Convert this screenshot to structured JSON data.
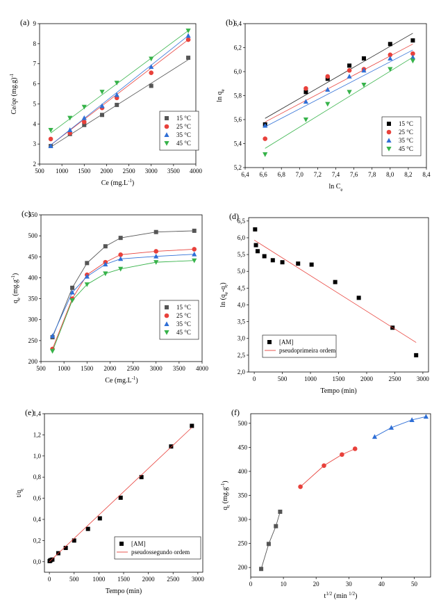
{
  "chart_data": [
    {
      "id": "a",
      "panel_label": "(a)",
      "type": "scatter",
      "xlabel": "Ce (mg.L",
      "xlabel_sup": "-1",
      "xlabel_tail": ")",
      "ylabel": "Ce/qe (mg.g",
      "ylabel_sup": "-1",
      "ylabel_tail": ")",
      "xlim": [
        500,
        4000
      ],
      "ylim": [
        2,
        9
      ],
      "xticks": [
        500,
        1000,
        1500,
        2000,
        2500,
        3000,
        3500,
        4000
      ],
      "xtick_labels": [
        "500",
        "1000",
        "1500",
        "2000",
        "2500",
        "3000",
        "3500",
        "4000"
      ],
      "yticks": [
        2,
        3,
        4,
        5,
        6,
        7,
        8,
        9
      ],
      "ytick_labels": [
        "2",
        "3",
        "4",
        "5",
        "6",
        "7",
        "8",
        "9"
      ],
      "legend_placement": "bottom-right",
      "series": [
        {
          "name": "15 °C",
          "marker": "square",
          "color": "#555555",
          "x": [
            750,
            1180,
            1500,
            1900,
            2230,
            3000,
            3830
          ],
          "y": [
            2.9,
            3.5,
            3.95,
            4.45,
            4.95,
            5.9,
            7.3
          ],
          "fit": [
            [
              750,
              2.85
            ],
            [
              3830,
              7.2
            ]
          ]
        },
        {
          "name": "25 °C",
          "marker": "circle",
          "color": "#e8413b",
          "x": [
            750,
            1180,
            1500,
            1900,
            2230,
            3000,
            3830
          ],
          "y": [
            3.25,
            3.55,
            4.1,
            4.8,
            5.3,
            6.55,
            8.2
          ],
          "fit": [
            [
              750,
              2.95
            ],
            [
              3830,
              8.2
            ]
          ]
        },
        {
          "name": "35 °C",
          "marker": "triangle-up",
          "color": "#2f6fd6",
          "x": [
            750,
            1180,
            1500,
            1900,
            2230,
            3000,
            3830
          ],
          "y": [
            2.9,
            3.7,
            4.3,
            4.9,
            5.45,
            6.85,
            8.4
          ],
          "fit": [
            [
              750,
              2.95
            ],
            [
              3830,
              8.4
            ]
          ]
        },
        {
          "name": "45 °C",
          "marker": "triangle-down",
          "color": "#37b34a",
          "x": [
            750,
            1180,
            1500,
            1900,
            2230,
            3000,
            3830
          ],
          "y": [
            3.7,
            4.3,
            4.85,
            5.6,
            6.05,
            7.25,
            8.65
          ],
          "fit": [
            [
              750,
              3.55
            ],
            [
              3830,
              8.65
            ]
          ]
        }
      ]
    },
    {
      "id": "b",
      "panel_label": "(b)",
      "type": "scatter",
      "xlabel": "ln C",
      "xlabel_sub": "e",
      "ylabel": "ln q",
      "ylabel_sub": "e",
      "xlim": [
        6.4,
        8.4
      ],
      "ylim": [
        5.2,
        6.4
      ],
      "xticks": [
        6.4,
        6.6,
        6.8,
        7.0,
        7.2,
        7.4,
        7.6,
        7.8,
        8.0,
        8.2,
        8.4
      ],
      "xtick_labels": [
        "6,4",
        "6,6",
        "6,8",
        "7,0",
        "7,2",
        "7,4",
        "7,6",
        "7,8",
        "8,0",
        "8,2",
        "8,4"
      ],
      "yticks": [
        5.2,
        5.4,
        5.6,
        5.8,
        6.0,
        6.2,
        6.4
      ],
      "ytick_labels": [
        "5,2",
        "5,4",
        "5,6",
        "5,8",
        "6,0",
        "6,2",
        "6,4"
      ],
      "legend_placement": "bottom-right",
      "series": [
        {
          "name": "15 °C",
          "marker": "square",
          "color": "#000000",
          "x": [
            6.62,
            7.07,
            7.31,
            7.55,
            7.71,
            8.0,
            8.25
          ],
          "y": [
            5.56,
            5.83,
            5.94,
            6.05,
            6.11,
            6.23,
            6.26
          ],
          "fit": [
            [
              6.62,
              5.61
            ],
            [
              8.25,
              6.32
            ]
          ]
        },
        {
          "name": "25 °C",
          "marker": "circle",
          "color": "#e8413b",
          "x": [
            6.62,
            7.07,
            7.31,
            7.55,
            7.71,
            8.0,
            8.25
          ],
          "y": [
            5.44,
            5.86,
            5.96,
            6.01,
            6.02,
            6.14,
            6.15
          ],
          "fit": [
            [
              6.62,
              5.58
            ],
            [
              8.25,
              6.23
            ]
          ]
        },
        {
          "name": "35 °C",
          "marker": "triangle-up",
          "color": "#2f6fd6",
          "x": [
            6.62,
            7.07,
            7.31,
            7.55,
            7.71,
            8.0,
            8.25
          ],
          "y": [
            5.55,
            5.75,
            5.85,
            5.96,
            6.01,
            6.11,
            6.12
          ],
          "fit": [
            [
              6.62,
              5.54
            ],
            [
              8.25,
              6.18
            ]
          ]
        },
        {
          "name": "45 °C",
          "marker": "triangle-down",
          "color": "#37b34a",
          "x": [
            6.62,
            7.07,
            7.31,
            7.55,
            7.71,
            8.0,
            8.25
          ],
          "y": [
            5.31,
            5.6,
            5.73,
            5.83,
            5.89,
            6.02,
            6.09
          ],
          "fit": [
            [
              6.62,
              5.36
            ],
            [
              8.25,
              6.12
            ]
          ]
        }
      ]
    },
    {
      "id": "c",
      "panel_label": "(c)",
      "type": "line",
      "xlabel": "Ce (mg.L",
      "xlabel_sup": "-1",
      "xlabel_tail": ")",
      "ylabel": "q",
      "ylabel_sub": "e",
      "ylabel_tail": " (mg.g",
      "ylabel_sup": "-1",
      "ylabel_tail2": ")",
      "xlim": [
        500,
        4000
      ],
      "ylim": [
        200,
        550
      ],
      "xticks": [
        500,
        1000,
        1500,
        2000,
        2500,
        3000,
        3500,
        4000
      ],
      "xtick_labels": [
        "500",
        "1000",
        "1500",
        "2000",
        "2500",
        "3000",
        "3500",
        "4000"
      ],
      "yticks": [
        200,
        250,
        300,
        350,
        400,
        450,
        500,
        550
      ],
      "ytick_labels": [
        "200",
        "250",
        "300",
        "350",
        "400",
        "450",
        "500",
        "550"
      ],
      "legend_placement": "bottom-right",
      "series": [
        {
          "name": "15 °C",
          "marker": "square",
          "color": "#555555",
          "x": [
            750,
            1180,
            1500,
            1900,
            2230,
            3000,
            3830
          ],
          "y": [
            258,
            376,
            435,
            475,
            495,
            509,
            512
          ]
        },
        {
          "name": "25 °C",
          "marker": "circle",
          "color": "#e8413b",
          "x": [
            750,
            1180,
            1500,
            1900,
            2230,
            3000,
            3830
          ],
          "y": [
            230,
            350,
            407,
            437,
            455,
            463,
            468
          ]
        },
        {
          "name": "35 °C",
          "marker": "triangle-up",
          "color": "#2f6fd6",
          "x": [
            750,
            1180,
            1500,
            1900,
            2230,
            3000,
            3830
          ],
          "y": [
            261,
            365,
            403,
            432,
            445,
            451,
            456
          ]
        },
        {
          "name": "45 °C",
          "marker": "triangle-down",
          "color": "#37b34a",
          "x": [
            750,
            1180,
            1500,
            1900,
            2230,
            3000,
            3830
          ],
          "y": [
            225,
            346,
            384,
            410,
            421,
            437,
            441
          ]
        }
      ]
    },
    {
      "id": "d",
      "panel_label": "(d)",
      "type": "scatter",
      "xlabel": "Tempo (min)",
      "ylabel": "ln (q",
      "ylabel_sub": "e",
      "ylabel_tail": "-q",
      "ylabel_sub2": "t",
      "ylabel_tail2": ")",
      "xlim": [
        -100,
        3100
      ],
      "ylim": [
        2.0,
        6.6
      ],
      "xticks": [
        0,
        500,
        1000,
        1500,
        2000,
        2500,
        3000
      ],
      "xtick_labels": [
        "0",
        "500",
        "1000",
        "1500",
        "2000",
        "2500",
        "3000"
      ],
      "yticks": [
        2.0,
        2.5,
        3.0,
        3.5,
        4.0,
        4.5,
        5.0,
        5.5,
        6.0,
        6.5
      ],
      "ytick_labels": [
        "2,0",
        "2,5",
        "3,0",
        "3,5",
        "4,0",
        "4,5",
        "5,0",
        "5,5",
        "6,0",
        "6,5"
      ],
      "legend_placement": "bottom-left",
      "series": [
        {
          "name": "[AM]",
          "marker": "square",
          "color": "#000000",
          "x": [
            15,
            30,
            60,
            180,
            330,
            500,
            780,
            1020,
            1440,
            1860,
            2460,
            2880
          ],
          "y": [
            6.25,
            5.78,
            5.6,
            5.45,
            5.33,
            5.27,
            5.23,
            5.2,
            4.68,
            4.21,
            3.32,
            2.5
          ]
        },
        {
          "name": "pseudoprimeira ordem",
          "marker": "line",
          "color": "#e8413b",
          "fit": [
            [
              0,
              5.93
            ],
            [
              2880,
              2.88
            ]
          ]
        }
      ]
    },
    {
      "id": "e",
      "panel_label": "(e)",
      "type": "scatter",
      "xlabel": "Tempo (min)",
      "ylabel": "t/q",
      "ylabel_sub": "t",
      "xlim": [
        -100,
        3100
      ],
      "ylim": [
        -0.1,
        1.4
      ],
      "xticks": [
        0,
        500,
        1000,
        1500,
        2000,
        2500,
        3000
      ],
      "xtick_labels": [
        "0",
        "500",
        "1000",
        "1500",
        "2000",
        "2500",
        "3000"
      ],
      "yticks": [
        0.0,
        0.2,
        0.4,
        0.6,
        0.8,
        1.0,
        1.2,
        1.4
      ],
      "ytick_labels": [
        "0,0",
        "0,2",
        "0,4",
        "0,6",
        "0,8",
        "1,0",
        "1,2",
        "1,4"
      ],
      "legend_placement": "bottom-center",
      "series": [
        {
          "name": "[AM]",
          "marker": "square",
          "color": "#000000",
          "x": [
            5,
            15,
            30,
            60,
            180,
            330,
            500,
            780,
            1020,
            1440,
            1860,
            2460,
            2880
          ],
          "y": [
            0.005,
            0.01,
            0.015,
            0.02,
            0.08,
            0.13,
            0.2,
            0.31,
            0.41,
            0.605,
            0.8,
            1.09,
            1.285
          ]
        },
        {
          "name": "pseudossegundo ordem",
          "marker": "line",
          "color": "#e8413b",
          "fit": [
            [
              0,
              0.0
            ],
            [
              2880,
              1.27
            ]
          ]
        }
      ]
    },
    {
      "id": "f",
      "panel_label": "(f)",
      "type": "scatter",
      "xlabel": "t",
      "xlabel_sup": "1/2",
      "xlabel_tail": " (min ",
      "xlabel_sup2": "1/2",
      "xlabel_tail2": ")",
      "ylabel": "q",
      "ylabel_sub": "t",
      "ylabel_tail": " (mg.g",
      "ylabel_sup": "-1",
      "ylabel_tail2": ")",
      "xlim": [
        0,
        55
      ],
      "ylim": [
        180,
        520
      ],
      "xticks": [
        0,
        10,
        20,
        30,
        40,
        50
      ],
      "xtick_labels": [
        "0",
        "10",
        "20",
        "30",
        "40",
        "50"
      ],
      "yticks": [
        200,
        250,
        300,
        350,
        400,
        450,
        500
      ],
      "ytick_labels": [
        "200",
        "250",
        "300",
        "350",
        "400",
        "450",
        "500"
      ],
      "legend_placement": "none",
      "series": [
        {
          "marker": "square",
          "color": "#555555",
          "x": [
            3.2,
            5.5,
            7.7,
            9.0
          ],
          "y": [
            197,
            249,
            286,
            316
          ],
          "connect": true
        },
        {
          "marker": "circle",
          "color": "#e8413b",
          "x": [
            15.2,
            22.4,
            27.9,
            31.9
          ],
          "y": [
            368,
            412,
            435,
            447
          ],
          "connect": true
        },
        {
          "marker": "triangle-up",
          "color": "#2f6fd6",
          "x": [
            37.9,
            43.0,
            49.3,
            53.6
          ],
          "y": [
            472,
            491,
            507,
            514
          ],
          "connect": true
        }
      ]
    }
  ]
}
